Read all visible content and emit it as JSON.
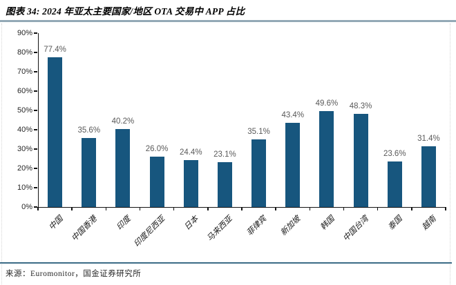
{
  "figure": {
    "title": "图表 34: 2024 年亚太主要国家/地区 OTA 交易中 APP 占比",
    "source": "来源：Euromonitor，国金证券研究所"
  },
  "chart_data": {
    "type": "bar",
    "title": "2024 年亚太主要国家/地区 OTA 交易中 APP 占比",
    "categories": [
      "中国",
      "中国香港",
      "印度",
      "印度尼西亚",
      "日本",
      "马来西亚",
      "菲律宾",
      "新加坡",
      "韩国",
      "中国台湾",
      "泰国",
      "越南"
    ],
    "values": [
      77.4,
      35.6,
      40.2,
      26.0,
      24.4,
      23.1,
      35.1,
      43.4,
      49.6,
      48.3,
      23.6,
      31.4
    ],
    "value_labels": [
      "77.4%",
      "35.6%",
      "40.2%",
      "26.0%",
      "24.4%",
      "23.1%",
      "35.1%",
      "43.4%",
      "49.6%",
      "48.3%",
      "23.6%",
      "31.4%"
    ],
    "xlabel": "",
    "ylabel": "",
    "ylim": [
      0,
      90
    ],
    "ytick_step": 10,
    "ytick_labels": [
      "0%",
      "10%",
      "20%",
      "30%",
      "40%",
      "50%",
      "60%",
      "70%",
      "80%",
      "90%"
    ],
    "grid": false,
    "legend": false,
    "bar_color": "#17567e",
    "value_label_color": "#595959",
    "axis_color": "#111111"
  },
  "colors": {
    "title_underline": "#93a9b6",
    "footer_divider": "#3a6b85"
  }
}
